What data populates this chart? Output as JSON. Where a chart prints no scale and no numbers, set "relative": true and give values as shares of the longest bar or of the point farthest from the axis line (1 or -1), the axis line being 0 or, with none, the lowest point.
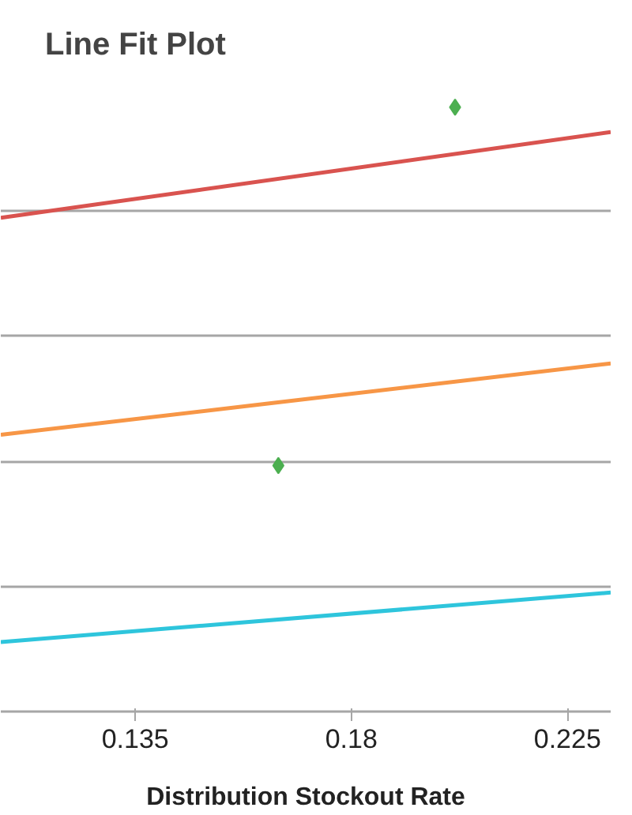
{
  "chart_data": {
    "type": "line",
    "title": "Line Fit Plot",
    "xlabel": "Distribution Stockout Rate",
    "relative": true,
    "grid": "y",
    "xlim": [
      0.107,
      0.234
    ],
    "xticks": [
      0.135,
      0.18,
      0.225
    ],
    "series": [
      {
        "color": "#d9534f",
        "x": [
          0.107,
          0.234
        ],
        "values": [
          0.817,
          0.959
        ]
      },
      {
        "color": "#f79646",
        "x": [
          0.107,
          0.234
        ],
        "values": [
          0.458,
          0.576
        ]
      },
      {
        "color": "#2ec5dc",
        "x": [
          0.107,
          0.234
        ],
        "values": [
          0.115,
          0.197
        ]
      },
      {
        "type": "scatter",
        "color": "#4caf50",
        "marker": "diamond",
        "x": [
          0.1648,
          0.2016
        ],
        "values": [
          0.407,
          1.0
        ]
      }
    ]
  }
}
